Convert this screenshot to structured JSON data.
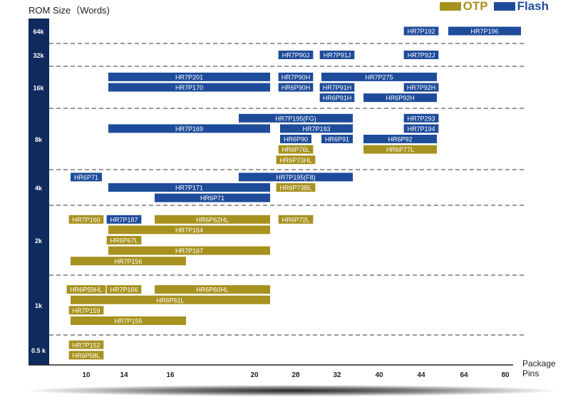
{
  "chart_data": {
    "type": "bar",
    "title": "ROM Size（Words)",
    "xlabel_line1": "Package",
    "xlabel_line2": "Pins",
    "x_ticks": [
      "10",
      "14",
      "16",
      "20",
      "28",
      "32",
      "40",
      "44",
      "64",
      "80"
    ],
    "rom_bands": [
      "64k",
      "32k",
      "16k",
      "8k",
      "4k",
      "2k",
      "1k",
      "0.5 k"
    ],
    "legend": [
      {
        "name": "OTP",
        "color": "#a8921f"
      },
      {
        "name": "Flash",
        "color": "#1e4c9a"
      }
    ],
    "colors": {
      "OTP": "#a8921f",
      "Flash": "#1e4c9a",
      "axis_band": "#0f2a5c"
    },
    "bars": [
      {
        "label": "HR7P192",
        "type": "Flash",
        "rom": "64k",
        "pins": [
          "44"
        ]
      },
      {
        "label": "HR7P196",
        "type": "Flash",
        "rom": "64k",
        "pins": [
          "64",
          "80"
        ]
      },
      {
        "label": "HR7P90J",
        "type": "Flash",
        "rom": "32k",
        "pins": [
          "28"
        ]
      },
      {
        "label": "HR7P91J",
        "type": "Flash",
        "rom": "32k",
        "pins": [
          "32"
        ]
      },
      {
        "label": "HR7P92J",
        "type": "Flash",
        "rom": "32k",
        "pins": [
          "44"
        ]
      },
      {
        "label": "HR7P275",
        "type": "Flash",
        "rom": "16k",
        "pins": [
          "32",
          "44"
        ]
      },
      {
        "label": "HR7P201",
        "type": "Flash",
        "rom": "16k",
        "pins": [
          "14",
          "20"
        ]
      },
      {
        "label": "HR7P90H",
        "type": "Flash",
        "rom": "16k",
        "pins": [
          "28"
        ]
      },
      {
        "label": "HR7P91H",
        "type": "Flash",
        "rom": "16k",
        "pins": [
          "32"
        ]
      },
      {
        "label": "HR7P92H",
        "type": "Flash",
        "rom": "16k",
        "pins": [
          "44"
        ]
      },
      {
        "label": "HR7P170",
        "type": "Flash",
        "rom": "16k",
        "pins": [
          "14",
          "20"
        ]
      },
      {
        "label": "HR6P90H",
        "type": "Flash",
        "rom": "16k",
        "pins": [
          "28"
        ]
      },
      {
        "label": "HR6P91H",
        "type": "Flash",
        "rom": "16k",
        "pins": [
          "32"
        ]
      },
      {
        "label": "HR6P92H",
        "type": "Flash",
        "rom": "16k",
        "pins": [
          "40",
          "44"
        ]
      },
      {
        "label": "HR7P195(FG)",
        "type": "Flash",
        "rom": "8k",
        "pins": [
          "20",
          "32"
        ]
      },
      {
        "label": "HR7P293",
        "type": "Flash",
        "rom": "8k",
        "pins": [
          "44"
        ]
      },
      {
        "label": "HR7P169",
        "type": "Flash",
        "rom": "8k",
        "pins": [
          "14",
          "20"
        ]
      },
      {
        "label": "HR7P193",
        "type": "Flash",
        "rom": "8k",
        "pins": [
          "28",
          "32"
        ]
      },
      {
        "label": "HR7P194",
        "type": "Flash",
        "rom": "8k",
        "pins": [
          "44"
        ]
      },
      {
        "label": "HR6P90",
        "type": "Flash",
        "rom": "8k",
        "pins": [
          "28"
        ]
      },
      {
        "label": "HR6P91",
        "type": "Flash",
        "rom": "8k",
        "pins": [
          "32"
        ]
      },
      {
        "label": "HR6P92",
        "type": "Flash",
        "rom": "8k",
        "pins": [
          "40",
          "44"
        ]
      },
      {
        "label": "HR6P76L",
        "type": "OTP",
        "rom": "8k",
        "pins": [
          "28"
        ]
      },
      {
        "label": "HR6P77L",
        "type": "OTP",
        "rom": "8k",
        "pins": [
          "40",
          "44"
        ]
      },
      {
        "label": "HR6P73HL",
        "type": "OTP",
        "rom": "8k",
        "pins": [
          "28"
        ]
      },
      {
        "label": "HR7P195(F8)",
        "type": "Flash",
        "rom": "4k",
        "pins": [
          "20",
          "32"
        ]
      },
      {
        "label": "HR7P171",
        "type": "Flash",
        "rom": "4k",
        "pins": [
          "14",
          "20"
        ]
      },
      {
        "label": "HR6P71",
        "type": "Flash",
        "rom": "4k",
        "pins": [
          "10"
        ]
      },
      {
        "label": "HR6P71",
        "type": "Flash",
        "rom": "4k",
        "pins": [
          "16",
          "20"
        ]
      },
      {
        "label": "HR6P73BL",
        "type": "OTP",
        "rom": "4k",
        "pins": [
          "28"
        ]
      },
      {
        "label": "HR7P187",
        "type": "Flash",
        "rom": "2k",
        "pins": [
          "14"
        ]
      },
      {
        "label": "HR7P164",
        "type": "OTP",
        "rom": "2k",
        "pins": [
          "14",
          "20"
        ]
      },
      {
        "label": "HR6P67L",
        "type": "OTP",
        "rom": "2k",
        "pins": [
          "14"
        ]
      },
      {
        "label": "HR6P62HL",
        "type": "OTP",
        "rom": "2k",
        "pins": [
          "16",
          "20"
        ]
      },
      {
        "label": "HR6P72L",
        "type": "OTP",
        "rom": "2k",
        "pins": [
          "28"
        ]
      },
      {
        "label": "HR7P160",
        "type": "OTP",
        "rom": "2k",
        "pins": [
          "10"
        ]
      },
      {
        "label": "HR7P167",
        "type": "OTP",
        "rom": "2k",
        "pins": [
          "14",
          "20"
        ]
      },
      {
        "label": "HR7P156",
        "type": "OTP",
        "rom": "2k",
        "pins": [
          "10",
          "16"
        ]
      },
      {
        "label": "HR6P59HL",
        "type": "OTP",
        "rom": "1k",
        "pins": [
          "10"
        ]
      },
      {
        "label": "HR6P60HL",
        "type": "OTP",
        "rom": "1k",
        "pins": [
          "16",
          "20"
        ]
      },
      {
        "label": "HR6P61L",
        "type": "OTP",
        "rom": "1k",
        "pins": [
          "10",
          "20"
        ]
      },
      {
        "label": "HR7P159",
        "type": "OTP",
        "rom": "1k",
        "pins": [
          "10"
        ]
      },
      {
        "label": "HR7P155",
        "type": "OTP",
        "rom": "1k",
        "pins": [
          "10",
          "16"
        ]
      },
      {
        "label": "HR7P166",
        "type": "OTP",
        "rom": "1k",
        "pins": [
          "14"
        ]
      },
      {
        "label": "HR7P152",
        "type": "OTP",
        "rom": "0.5 k",
        "pins": [
          "10"
        ]
      },
      {
        "label": "HR6P58L",
        "type": "OTP",
        "rom": "0.5 k",
        "pins": [
          "10"
        ]
      }
    ]
  }
}
